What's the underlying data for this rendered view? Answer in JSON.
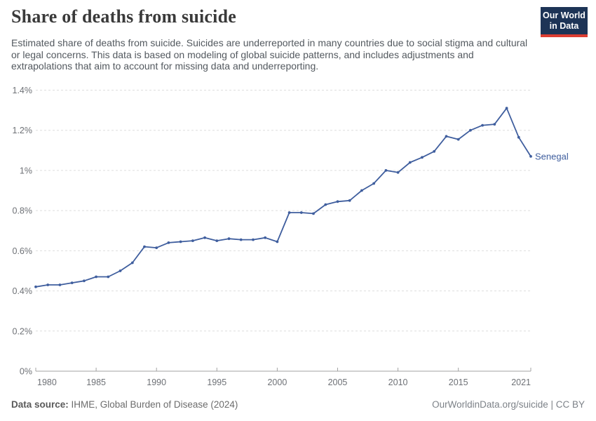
{
  "header": {
    "title": "Share of deaths from suicide",
    "subtitle": "Estimated share of deaths from suicide. Suicides are underreported in many countries due to social stigma and cultural or legal concerns. This data is based on modeling of global suicide patterns, and includes adjustments and extrapolations that aim to account for missing data and underreporting.",
    "logo": {
      "line1": "Our World",
      "line2": "in Data",
      "bg_color": "#1d3456",
      "accent_color": "#dc3e32"
    }
  },
  "chart_data": {
    "type": "line",
    "title": "Share of deaths from suicide",
    "unit": "%",
    "grid": "horizontal-dashed",
    "legend": "end-of-line-label",
    "xlim": [
      1980,
      2021
    ],
    "ylim": [
      0,
      1.4
    ],
    "x": [
      1980,
      1981,
      1982,
      1983,
      1984,
      1985,
      1986,
      1987,
      1988,
      1989,
      1990,
      1991,
      1992,
      1993,
      1994,
      1995,
      1996,
      1997,
      1998,
      1999,
      2000,
      2001,
      2002,
      2003,
      2004,
      2005,
      2006,
      2007,
      2008,
      2009,
      2010,
      2011,
      2012,
      2013,
      2014,
      2015,
      2016,
      2017,
      2018,
      2019,
      2020,
      2021
    ],
    "series": [
      {
        "name": "Senegal",
        "color": "#3f5e9e",
        "values": [
          0.42,
          0.43,
          0.43,
          0.44,
          0.45,
          0.47,
          0.47,
          0.5,
          0.54,
          0.62,
          0.615,
          0.64,
          0.645,
          0.65,
          0.665,
          0.65,
          0.66,
          0.655,
          0.655,
          0.665,
          0.645,
          0.79,
          0.79,
          0.785,
          0.83,
          0.845,
          0.85,
          0.9,
          0.935,
          1.0,
          0.99,
          1.04,
          1.065,
          1.095,
          1.17,
          1.155,
          1.2,
          1.225,
          1.23,
          1.31,
          1.165,
          1.07
        ]
      }
    ],
    "xticks": [
      1980,
      1985,
      1990,
      1995,
      2000,
      2005,
      2010,
      2015,
      2021
    ],
    "yticks": [
      {
        "value": 0,
        "label": "0%"
      },
      {
        "value": 0.2,
        "label": "0.2%"
      },
      {
        "value": 0.4,
        "label": "0.4%"
      },
      {
        "value": 0.6,
        "label": "0.6%"
      },
      {
        "value": 0.8,
        "label": "0.8%"
      },
      {
        "value": 1,
        "label": "1%"
      },
      {
        "value": 1.2,
        "label": "1.2%"
      },
      {
        "value": 1.4,
        "label": "1.4%"
      }
    ]
  },
  "footer": {
    "source_label": "Data source:",
    "source_text": " IHME, Global Burden of Disease (2024)",
    "credit": "OurWorldinData.org/suicide | CC BY"
  }
}
